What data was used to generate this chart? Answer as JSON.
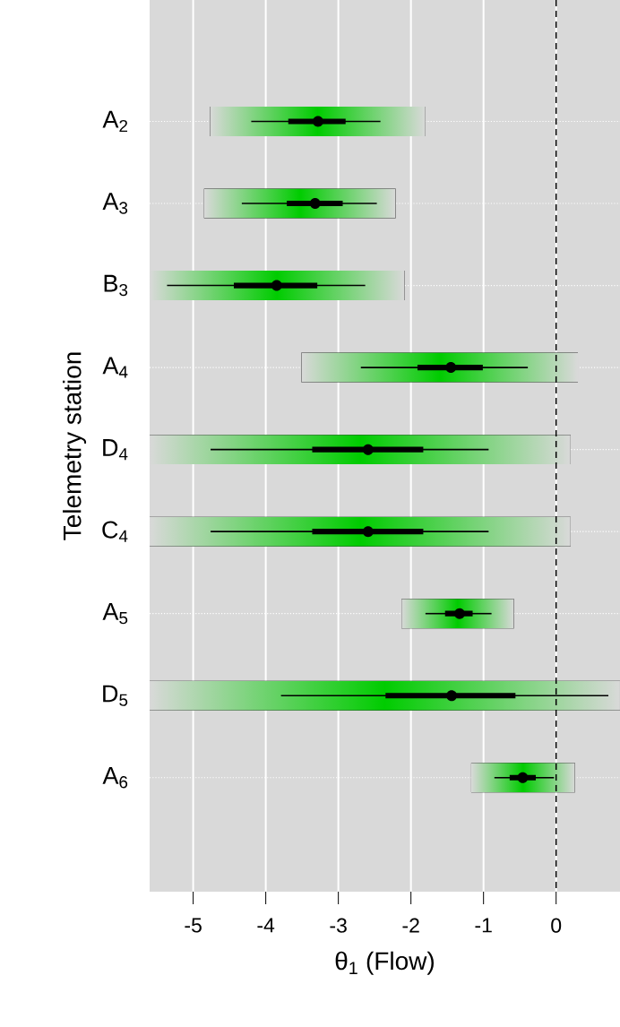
{
  "chart_data": {
    "type": "box",
    "orientation": "horizontal",
    "categories": [
      "A$_{2}$",
      "A$_{3}$",
      "B$_{3}$",
      "A$_{4}$",
      "D$_{4}$",
      "C$_{4}$",
      "A$_{5}$",
      "D$_{5}$",
      "A$_{6}$"
    ],
    "xlabel": "θ$_{1}$  (Flow)",
    "ylabel": "Telemetry station",
    "xlim": [
      -5.6,
      0.88
    ],
    "xticks": [
      -5,
      -4,
      -3,
      -2,
      -1,
      0
    ],
    "grid": true,
    "series": [
      {
        "type": "bar",
        "color": "#00cc00",
        "base": [
          -4.77,
          -4.85,
          -5.6,
          -3.51,
          -5.6,
          -5.6,
          -2.13,
          -5.6,
          -1.17
        ],
        "values": [
          2.97,
          2.64,
          3.51,
          3.81,
          5.8,
          5.8,
          1.55,
          6.48,
          1.43
        ]
      },
      {
        "color": "#000000",
        "boxes": [
          {
            "low": -4.2,
            "q1": -3.68,
            "median": -3.28,
            "q3": -2.91,
            "high": -2.42
          },
          {
            "low": -4.33,
            "q1": -3.7,
            "median": -3.32,
            "q3": -2.95,
            "high": -2.47
          },
          {
            "low": -5.36,
            "q1": -4.43,
            "median": -3.85,
            "q3": -3.3,
            "high": -2.63
          },
          {
            "low": -2.69,
            "q1": -1.9,
            "median": -1.45,
            "q3": -1.02,
            "high": -0.39
          },
          {
            "low": -4.76,
            "q1": -3.35,
            "median": -2.59,
            "q3": -1.84,
            "high": -0.93
          },
          {
            "low": -4.76,
            "q1": -3.35,
            "median": -2.59,
            "q3": -1.84,
            "high": -0.93
          },
          {
            "low": -1.8,
            "q1": -1.52,
            "median": -1.33,
            "q3": -1.16,
            "high": -0.89
          },
          {
            "low": -3.79,
            "q1": -2.34,
            "median": -1.44,
            "q3": -0.57,
            "high": 0.72
          },
          {
            "low": -0.85,
            "q1": -0.63,
            "median": -0.46,
            "q3": -0.29,
            "high": -0.03
          }
        ]
      }
    ],
    "ref_lines": [
      {
        "axis": "x",
        "value": 0,
        "color": "#000000",
        "line_style": "dashed"
      }
    ]
  }
}
